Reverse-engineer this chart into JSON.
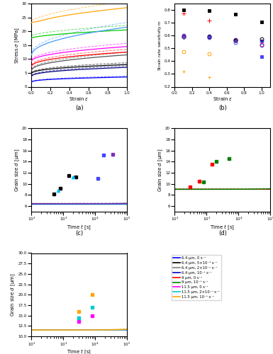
{
  "panel_a": {
    "lines": [
      {
        "color": "#FFA500",
        "s0": 22.0,
        "s1": 28.5,
        "exp": 0.55,
        "peak": true,
        "peak_val": 23.0
      },
      {
        "color": "#00CC00",
        "s0": 17.5,
        "s1": 20.5,
        "exp": 0.6,
        "peak": false
      },
      {
        "color": "#4499FF",
        "s0": 11.0,
        "s1": 21.5,
        "exp": 0.45,
        "peak": false
      },
      {
        "color": "#FF00FF",
        "s0": 9.0,
        "s1": 14.5,
        "exp": 0.45,
        "peak": false
      },
      {
        "color": "#FF0000",
        "s0": 7.0,
        "s1": 12.5,
        "exp": 0.4,
        "peak": false
      },
      {
        "color": "#555555",
        "s0": 5.5,
        "s1": 11.5,
        "exp": 0.4,
        "peak": false
      },
      {
        "color": "#000000",
        "s0": 4.5,
        "s1": 8.0,
        "exp": 0.38,
        "peak": false
      },
      {
        "color": "#000080",
        "s0": 3.5,
        "s1": 7.0,
        "exp": 0.38,
        "peak": false
      },
      {
        "color": "#0000FF",
        "s0": 1.5,
        "s1": 3.5,
        "exp": 0.35,
        "peak": false
      }
    ]
  },
  "panel_b": {
    "strain_vals": [
      0.1,
      0.4,
      0.7,
      1.0
    ],
    "series": [
      {
        "color": "black",
        "marker": "s",
        "mfc": "black",
        "ms": 3.5,
        "vals": [
          0.8,
          0.795,
          0.765,
          0.705
        ]
      },
      {
        "color": "red",
        "marker": "+",
        "mfc": "red",
        "ms": 4.0,
        "vals": [
          0.775,
          0.715,
          null,
          null
        ]
      },
      {
        "color": "#4444FF",
        "marker": "s",
        "mfc": "#4444FF",
        "ms": 3.0,
        "vals": [
          null,
          null,
          null,
          0.435
        ]
      },
      {
        "color": "#4444FF",
        "marker": "o",
        "mfc": "#4444FF",
        "ms": 3.5,
        "vals": [
          0.6,
          0.598,
          0.57,
          0.555
        ]
      },
      {
        "color": "red",
        "marker": "o",
        "mfc": "none",
        "ms": 3.5,
        "vals": [
          0.595,
          0.592,
          0.565,
          0.53
        ]
      },
      {
        "color": "black",
        "marker": "o",
        "mfc": "none",
        "ms": 3.5,
        "vals": [
          0.59,
          0.588,
          0.56,
          0.572
        ]
      },
      {
        "color": "#4444FF",
        "marker": "o",
        "mfc": "none",
        "ms": 3.5,
        "vals": [
          0.588,
          0.585,
          0.548,
          0.524
        ]
      },
      {
        "color": "orange",
        "marker": "o",
        "mfc": "none",
        "ms": 3.5,
        "vals": [
          0.475,
          0.455,
          null,
          null
        ]
      },
      {
        "color": "orange",
        "marker": "+",
        "mfc": "orange",
        "ms": 3.5,
        "vals": [
          0.32,
          0.272,
          null,
          null
        ]
      }
    ]
  },
  "panel_c": {
    "d0": 6.4,
    "curves": [
      {
        "color": "#00BFFF",
        "K": 3e-07,
        "n": 2.5,
        "dash": false
      },
      {
        "color": "#000000",
        "K": 8e-06,
        "n": 2.5,
        "dash": false
      },
      {
        "color": "#7B2FBE",
        "K": 2e-05,
        "n": 2.5,
        "dash": false
      }
    ],
    "data_pts": [
      {
        "t": 500,
        "d": 8.1,
        "marker": "s",
        "color": "#000000"
      },
      {
        "t": 800,
        "d": 9.2,
        "marker": "s",
        "color": "#000000"
      },
      {
        "t": 1500,
        "d": 11.5,
        "marker": "s",
        "color": "#000000"
      },
      {
        "t": 2500,
        "d": 11.2,
        "marker": "s",
        "color": "#000000"
      },
      {
        "t": 700,
        "d": 8.8,
        "marker": "^",
        "color": "#00BFFF"
      },
      {
        "t": 2000,
        "d": 11.2,
        "marker": "^",
        "color": "#00BFFF"
      },
      {
        "t": 12000,
        "d": 11.0,
        "marker": "s",
        "color": "#4444FF"
      },
      {
        "t": 18000,
        "d": 15.2,
        "marker": "s",
        "color": "#4444FF"
      },
      {
        "t": 35000,
        "d": 15.3,
        "marker": "s",
        "color": "#7B2FBE"
      }
    ],
    "xlim": [
      100,
      100000
    ],
    "ylim": [
      5,
      20
    ]
  },
  "panel_d": {
    "d0": 9.0,
    "curves": [
      {
        "color": "#FF0000",
        "K": 6e-06,
        "n": 2.5
      },
      {
        "color": "#008000",
        "K": 6e-05,
        "n": 2.5
      }
    ],
    "data_pts": [
      {
        "t": 300,
        "d": 9.5,
        "marker": "s",
        "color": "#FF0000"
      },
      {
        "t": 600,
        "d": 10.5,
        "marker": "s",
        "color": "#FF0000"
      },
      {
        "t": 1500,
        "d": 13.5,
        "marker": "s",
        "color": "#FF0000"
      },
      {
        "t": 800,
        "d": 10.3,
        "marker": "s",
        "color": "#008000"
      },
      {
        "t": 2000,
        "d": 14.0,
        "marker": "s",
        "color": "#008000"
      },
      {
        "t": 5000,
        "d": 14.5,
        "marker": "s",
        "color": "#008000"
      }
    ],
    "xlim": [
      100,
      100000
    ],
    "ylim": [
      5,
      20
    ]
  },
  "panel_e": {
    "d0": 11.5,
    "curves": [
      {
        "color": "#FF00FF",
        "K": 5e-06,
        "n": 2.5
      },
      {
        "color": "#00CCCC",
        "K": 3e-05,
        "n": 2.5
      },
      {
        "color": "#FFA500",
        "K": 0.0002,
        "n": 2.5
      }
    ],
    "data_pts": [
      {
        "t": 3000,
        "d": 13.5,
        "marker": "s",
        "color": "#FF00FF"
      },
      {
        "t": 8000,
        "d": 15.0,
        "marker": "s",
        "color": "#FF00FF"
      },
      {
        "t": 3000,
        "d": 14.5,
        "marker": "s",
        "color": "#00CCCC"
      },
      {
        "t": 8000,
        "d": 17.0,
        "marker": "s",
        "color": "#00CCCC"
      },
      {
        "t": 3000,
        "d": 16.0,
        "marker": "s",
        "color": "#FFA500"
      },
      {
        "t": 8000,
        "d": 20.0,
        "marker": "s",
        "color": "#FFA500"
      }
    ],
    "xlim": [
      100,
      100000
    ],
    "ylim": [
      10,
      30
    ]
  },
  "legend": [
    {
      "color": "#0000FF",
      "label": "6.4 μm, 0 s⁻¹"
    },
    {
      "color": "#000000",
      "label": "6.4 μm, 5×10⁻⁵ s⁻¹"
    },
    {
      "color": "#808080",
      "label": "6.4 μm, 2×10⁻⁴ s⁻¹"
    },
    {
      "color": "#0000CD",
      "label": "6.4 μm, 10⁻³ s⁻¹"
    },
    {
      "color": "#FF0000",
      "label": "9 μm, 0 s⁻¹"
    },
    {
      "color": "#008000",
      "label": "9 μm, 10⁻³ s⁻¹"
    },
    {
      "color": "#FF00FF",
      "label": "11.5 μm, 0 s⁻¹"
    },
    {
      "color": "#00CCCC",
      "label": "11.5 μm, 2×10⁻⁴ s⁻¹"
    },
    {
      "color": "#FFA500",
      "label": "11.5 μm, 10⁻³ s⁻¹"
    }
  ]
}
